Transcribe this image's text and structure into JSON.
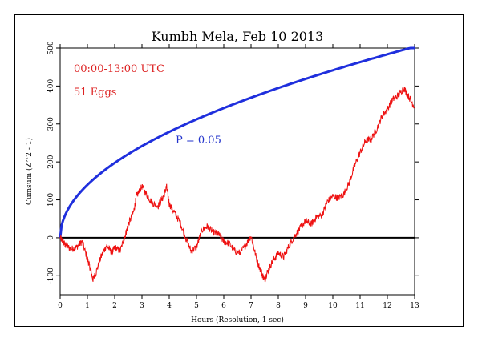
{
  "chart_data": {
    "type": "line",
    "title": "Kumbh Mela, Feb 10 2013",
    "xlabel": "Hours (Resolution, 1 sec)",
    "ylabel": "Cumsum (Z^2 - 1)",
    "xlim": [
      0,
      13
    ],
    "ylim": [
      -150,
      500
    ],
    "x_ticks": [
      "0",
      "1",
      "2",
      "3",
      "4",
      "5",
      "6",
      "7",
      "8",
      "9",
      "10",
      "11",
      "12",
      "13"
    ],
    "y_ticks": [
      "-100",
      "0",
      "100",
      "200",
      "300",
      "400",
      "500"
    ],
    "annotations": {
      "time_range": "00:00-13:00 UTC",
      "eggs": "51 Eggs",
      "p_label": "P = 0.05"
    },
    "colors": {
      "cumsum": "#ee1111",
      "probability": "#1f2fdd",
      "baseline": "#000000",
      "time_range": "#dd2222",
      "eggs": "#dd2222",
      "p_label": "#2233cc"
    },
    "series": [
      {
        "role": "probability envelope",
        "shape": "y = 1.645 * sqrt(2 * seconds)",
        "x": [
          0,
          0.25,
          0.5,
          1,
          2,
          3,
          4,
          5,
          6,
          7,
          8,
          9,
          10,
          11,
          12,
          13
        ],
        "values": [
          0,
          70,
          98,
          140,
          197,
          242,
          279,
          312,
          342,
          369,
          395,
          419,
          441,
          463,
          483,
          503
        ]
      },
      {
        "role": "cumulative deviation",
        "x": [
          0,
          0.1,
          0.2,
          0.4,
          0.6,
          0.8,
          1.0,
          1.1,
          1.2,
          1.3,
          1.5,
          1.7,
          1.9,
          2.0,
          2.2,
          2.4,
          2.5,
          2.7,
          2.8,
          3.0,
          3.2,
          3.4,
          3.6,
          3.8,
          3.9,
          4.0,
          4.2,
          4.4,
          4.6,
          4.8,
          5.0,
          5.2,
          5.4,
          5.6,
          5.8,
          6.0,
          6.2,
          6.4,
          6.6,
          6.8,
          7.0,
          7.2,
          7.4,
          7.5,
          7.6,
          7.8,
          8.0,
          8.2,
          8.4,
          8.6,
          8.8,
          9.0,
          9.2,
          9.4,
          9.6,
          9.8,
          10.0,
          10.2,
          10.4,
          10.6,
          10.8,
          11.0,
          11.2,
          11.4,
          11.6,
          11.8,
          12.0,
          12.2,
          12.4,
          12.6,
          12.8,
          13.0
        ],
        "values": [
          0,
          -10,
          -20,
          -30,
          -25,
          -10,
          -55,
          -80,
          -110,
          -95,
          -50,
          -20,
          -40,
          -25,
          -35,
          10,
          35,
          70,
          110,
          135,
          110,
          90,
          85,
          110,
          135,
          90,
          65,
          40,
          0,
          -35,
          -25,
          20,
          30,
          15,
          10,
          -10,
          -15,
          -35,
          -40,
          -20,
          5,
          -55,
          -95,
          -110,
          -90,
          -60,
          -40,
          -50,
          -20,
          5,
          25,
          45,
          35,
          55,
          60,
          95,
          110,
          105,
          115,
          145,
          190,
          225,
          255,
          260,
          285,
          320,
          340,
          365,
          375,
          395,
          370,
          345
        ]
      }
    ]
  }
}
